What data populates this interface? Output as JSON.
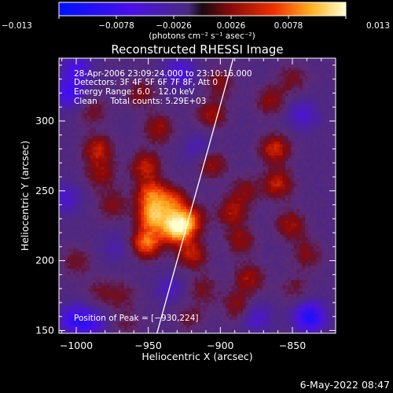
{
  "chart_data": {
    "type": "heatmap",
    "title": "Reconstructed RHESSI Image",
    "colorbar": {
      "tick_labels": [
        "−0.013",
        "−0.0078",
        "−0.0026",
        "0.0026",
        "0.0078",
        "0.013"
      ],
      "ticks": [
        -0.013,
        -0.0078,
        -0.0026,
        0.0026,
        0.0078,
        0.013
      ],
      "range": [
        -0.013,
        0.013
      ],
      "unit_label": "(photons cm⁻² s⁻¹ asec⁻²)"
    },
    "xlabel": "Heliocentric X (arcsec)",
    "ylabel": "Heliocentric Y (arcsec)",
    "xlim": [
      -1012,
      -820
    ],
    "ylim": [
      148,
      345
    ],
    "x_tick_labels": [
      "−1000",
      "−950",
      "−900",
      "−850"
    ],
    "x_ticks": [
      -1000,
      -950,
      -900,
      -850
    ],
    "y_tick_labels": [
      "150",
      "200",
      "250",
      "300"
    ],
    "y_ticks": [
      150,
      200,
      250,
      300
    ],
    "annotations": [
      "28-Apr-2006 23:09:24.000 to 23:10:16.000",
      "Detectors: 3F 4F 5F 6F 7F 8F, Att 0",
      "Energy Range: 6.0 - 12.0 keV",
      "Clean     Total counts: 5.29E+03"
    ],
    "peak_label": "Position of Peak = [−930,224]",
    "peak": [
      -930,
      224
    ],
    "limb_line": [
      [
        -944,
        148
      ],
      [
        -891,
        345
      ]
    ],
    "features": [
      {
        "x": -930,
        "y": 224,
        "value": 0.013
      },
      {
        "x": -947,
        "y": 232,
        "value": 0.0095
      },
      {
        "x": -951,
        "y": 213,
        "value": 0.0085
      },
      {
        "x": -948,
        "y": 248,
        "value": 0.0075
      },
      {
        "x": -933,
        "y": 242,
        "value": 0.0065
      },
      {
        "x": -920,
        "y": 205,
        "value": 0.0055
      },
      {
        "x": -920,
        "y": 230,
        "value": 0.005
      },
      {
        "x": -952,
        "y": 268,
        "value": 0.0055
      },
      {
        "x": -943,
        "y": 295,
        "value": 0.0045
      },
      {
        "x": -955,
        "y": 320,
        "value": 0.0035
      },
      {
        "x": -985,
        "y": 280,
        "value": 0.0055
      },
      {
        "x": -983,
        "y": 262,
        "value": 0.004
      },
      {
        "x": -975,
        "y": 240,
        "value": 0.0035
      },
      {
        "x": -988,
        "y": 308,
        "value": 0.003
      },
      {
        "x": -1000,
        "y": 200,
        "value": 0.003
      },
      {
        "x": -983,
        "y": 178,
        "value": 0.0025
      },
      {
        "x": -968,
        "y": 175,
        "value": 0.0025
      },
      {
        "x": -965,
        "y": 155,
        "value": 0.002
      },
      {
        "x": -906,
        "y": 270,
        "value": 0.0045
      },
      {
        "x": -906,
        "y": 305,
        "value": 0.0045
      },
      {
        "x": -900,
        "y": 328,
        "value": 0.0035
      },
      {
        "x": -892,
        "y": 235,
        "value": 0.0045
      },
      {
        "x": -886,
        "y": 215,
        "value": 0.004
      },
      {
        "x": -880,
        "y": 188,
        "value": 0.0045
      },
      {
        "x": -888,
        "y": 168,
        "value": 0.004
      },
      {
        "x": -883,
        "y": 250,
        "value": 0.0035
      },
      {
        "x": -865,
        "y": 315,
        "value": 0.004
      },
      {
        "x": -862,
        "y": 280,
        "value": 0.006
      },
      {
        "x": -860,
        "y": 255,
        "value": 0.0055
      },
      {
        "x": -851,
        "y": 226,
        "value": 0.0045
      },
      {
        "x": -840,
        "y": 205,
        "value": 0.0035
      },
      {
        "x": -848,
        "y": 180,
        "value": 0.0025
      },
      {
        "x": -850,
        "y": 330,
        "value": 0.003
      },
      {
        "x": -921,
        "y": 160,
        "value": 0.0025
      },
      {
        "x": -912,
        "y": 180,
        "value": 0.003
      },
      {
        "x": -1005,
        "y": 320,
        "value": -0.006
      },
      {
        "x": -1000,
        "y": 338,
        "value": -0.005
      },
      {
        "x": -1008,
        "y": 245,
        "value": -0.004
      },
      {
        "x": -1002,
        "y": 158,
        "value": -0.006
      },
      {
        "x": -990,
        "y": 155,
        "value": -0.005
      },
      {
        "x": -928,
        "y": 335,
        "value": -0.005
      },
      {
        "x": -838,
        "y": 160,
        "value": -0.009
      },
      {
        "x": -843,
        "y": 305,
        "value": -0.004
      },
      {
        "x": -875,
        "y": 160,
        "value": -0.004
      },
      {
        "x": -935,
        "y": 180,
        "value": -0.003
      },
      {
        "x": -972,
        "y": 210,
        "value": -0.002
      },
      {
        "x": -915,
        "y": 280,
        "value": -0.003
      }
    ]
  },
  "footer": {
    "date": "6-May-2022 08:47"
  }
}
